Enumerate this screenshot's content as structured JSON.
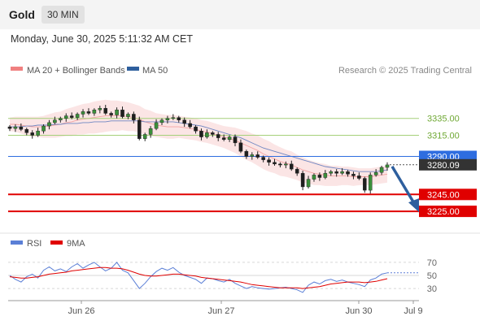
{
  "header": {
    "symbol": "Gold",
    "interval": "30 MIN",
    "datetime": "Monday, June 30, 2025 5:11:32 AM CET"
  },
  "legend": {
    "bb_label": "MA 20 + Bollinger Bands",
    "ma50_label": "MA 50",
    "credit": "Research © 2025 Trading Central",
    "bb_color": "#f08080",
    "ma50_color": "#2e5f9e"
  },
  "rsi_legend": {
    "rsi_label": "RSI",
    "ma_label": "9MA",
    "rsi_color": "#5b7fd6",
    "ma_color": "#e00000"
  },
  "chart_data": {
    "type": "candlestick",
    "y_range": [
      3203,
      3377
    ],
    "x_ticks": [
      "Jun 26",
      "Jun 27",
      "Jun 30",
      "Jul 9"
    ],
    "levels": [
      {
        "label": "3335.00",
        "value": 3335,
        "kind": "resistance",
        "color": "#a5d07a"
      },
      {
        "label": "3315.00",
        "value": 3315,
        "kind": "resistance",
        "color": "#a5d07a"
      },
      {
        "label": "3290.00",
        "value": 3290,
        "kind": "pivot",
        "color": "#2e6de0"
      },
      {
        "label": "3280.09",
        "value": 3280.09,
        "kind": "last",
        "color": "#333333"
      },
      {
        "label": "3245.00",
        "value": 3245,
        "kind": "support",
        "color": "#e00000"
      },
      {
        "label": "3225.00",
        "value": 3225,
        "kind": "support",
        "color": "#e00000"
      }
    ],
    "closes": [
      3323,
      3325,
      3322,
      3318,
      3315,
      3320,
      3326,
      3330,
      3333,
      3335,
      3338,
      3336,
      3340,
      3343,
      3341,
      3345,
      3347,
      3341,
      3339,
      3345,
      3337,
      3340,
      3333,
      3311,
      3316,
      3323,
      3330,
      3333,
      3335,
      3336,
      3333,
      3329,
      3325,
      3320,
      3313,
      3318,
      3316,
      3312,
      3310,
      3313,
      3306,
      3296,
      3290,
      3292,
      3289,
      3286,
      3283,
      3281,
      3280,
      3281,
      3275,
      3270,
      3254,
      3263,
      3268,
      3265,
      3270,
      3272,
      3270,
      3272,
      3269,
      3267,
      3264,
      3250,
      3268,
      3271,
      3277,
      3280
    ],
    "ma20": [
      3328,
      3328,
      3327,
      3326,
      3325,
      3325,
      3325,
      3326,
      3327,
      3328,
      3330,
      3331,
      3333,
      3334,
      3335,
      3336,
      3337,
      3338,
      3338,
      3338,
      3338,
      3337,
      3336,
      3334,
      3331,
      3329,
      3327,
      3326,
      3325,
      3325,
      3325,
      3324,
      3323,
      3322,
      3320,
      3319,
      3317,
      3315,
      3313,
      3311,
      3309,
      3306,
      3303,
      3300,
      3297,
      3293,
      3290,
      3287,
      3284,
      3282,
      3280,
      3277,
      3274,
      3272,
      3270,
      3269,
      3268,
      3267,
      3267,
      3267,
      3267,
      3266,
      3266,
      3266,
      3266,
      3267,
      3268,
      3269
    ],
    "ma50": [
      3325,
      3325,
      3325,
      3326,
      3326,
      3327,
      3327,
      3327,
      3328,
      3328,
      3329,
      3329,
      3329,
      3330,
      3330,
      3331,
      3331,
      3331,
      3332,
      3332,
      3332,
      3332,
      3332,
      3332,
      3331,
      3331,
      3331,
      3331,
      3331,
      3331,
      3330,
      3329,
      3328,
      3327,
      3326,
      3324,
      3322,
      3320,
      3318,
      3316,
      3314,
      3312,
      3309,
      3306,
      3303,
      3300,
      3298,
      3296,
      3294,
      3292,
      3290,
      3288,
      3286,
      3284,
      3282,
      3280,
      3278,
      3277,
      3276,
      3275,
      3274,
      3273,
      3272,
      3272,
      3272,
      3272,
      3273,
      3274
    ],
    "bb_width": [
      8,
      9,
      10,
      11,
      12,
      12,
      13,
      14,
      15,
      15,
      16,
      17,
      17,
      18,
      18,
      19,
      19,
      19,
      18,
      18,
      17,
      17,
      16,
      16,
      15,
      15,
      14,
      14,
      14,
      14,
      13,
      13,
      13,
      13,
      13,
      13,
      13,
      13,
      13,
      14,
      15,
      16,
      17,
      17,
      18,
      18,
      18,
      17,
      17,
      16,
      16,
      15,
      15,
      14,
      14,
      13,
      13,
      12,
      12,
      11,
      11,
      11,
      10,
      10,
      10,
      10,
      10,
      10
    ],
    "projection": {
      "from": 3280,
      "to": 3225
    },
    "rsi": {
      "y_ticks": [
        70,
        50,
        30
      ],
      "y_range": [
        14,
        86
      ],
      "values": [
        50,
        44,
        40,
        48,
        52,
        46,
        58,
        63,
        57,
        60,
        56,
        63,
        68,
        61,
        66,
        70,
        63,
        57,
        61,
        70,
        58,
        54,
        42,
        30,
        38,
        48,
        56,
        61,
        58,
        62,
        55,
        50,
        47,
        44,
        38,
        46,
        45,
        42,
        40,
        44,
        38,
        34,
        30,
        33,
        31,
        30,
        29,
        30,
        31,
        32,
        30,
        28,
        24,
        35,
        40,
        37,
        42,
        44,
        41,
        43,
        40,
        38,
        36,
        33,
        43,
        46,
        52,
        54
      ],
      "ma": [
        48,
        47,
        46,
        46,
        47,
        48,
        50,
        52,
        53,
        54,
        55,
        57,
        58,
        59,
        60,
        61,
        62,
        62,
        61,
        61,
        60,
        58,
        55,
        52,
        50,
        49,
        49,
        50,
        51,
        52,
        52,
        51,
        50,
        49,
        47,
        46,
        45,
        44,
        43,
        42,
        41,
        40,
        38,
        36,
        35,
        34,
        33,
        32,
        31,
        31,
        31,
        31,
        30,
        31,
        32,
        33,
        35,
        37,
        38,
        39,
        40,
        40,
        40,
        39,
        40,
        41,
        43,
        45
      ],
      "last": 54
    }
  }
}
